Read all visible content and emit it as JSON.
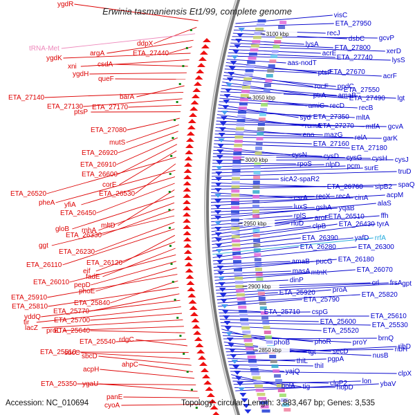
{
  "title": "Erwinia tasmaniensis Et1/99, complete genome",
  "accession": "Accession: NC_010694",
  "summary": "Topology: circular; Length: 3,883,467 bp; Genes: 3,535",
  "colors": {
    "left_labels": "#dd0000",
    "right_labels": "#0000cc",
    "trna_label": "#ee88bb",
    "rrna_label": "#22aadd",
    "backbone": "#777777",
    "tick_green": "#118811"
  },
  "scale_marks": [
    {
      "label": "3100 kbp"
    },
    {
      "label": "3050 kbp"
    },
    {
      "label": "3000 kbp"
    },
    {
      "label": "2950 kbp"
    },
    {
      "label": "2900 kbp"
    },
    {
      "label": "2850 kbp"
    }
  ],
  "left_labels": [
    {
      "text": "ygdR"
    },
    {
      "text": "ddpX"
    },
    {
      "text": "tRNA-Met",
      "kind": "trna"
    },
    {
      "text": "argA"
    },
    {
      "text": "ETA_27440"
    },
    {
      "text": "ygdK"
    },
    {
      "text": "xni"
    },
    {
      "text": "csdA"
    },
    {
      "text": "ygdH"
    },
    {
      "text": "queF"
    },
    {
      "text": "barA"
    },
    {
      "text": "ETA_27140"
    },
    {
      "text": "ETA_27130"
    },
    {
      "text": "ETA_27170"
    },
    {
      "text": "ptsP"
    },
    {
      "text": "ETA_27080"
    },
    {
      "text": "mutS"
    },
    {
      "text": "ETA_26920"
    },
    {
      "text": "ETA_26910"
    },
    {
      "text": "ETA_26600"
    },
    {
      "text": "corE"
    },
    {
      "text": "ETA_26520"
    },
    {
      "text": "ETA_26530"
    },
    {
      "text": "pheA"
    },
    {
      "text": "yfiA"
    },
    {
      "text": "ETA_26450"
    },
    {
      "text": "mltD"
    },
    {
      "text": "gloB"
    },
    {
      "text": "rnhA"
    },
    {
      "text": "ETA_26330"
    },
    {
      "text": "ggt"
    },
    {
      "text": "ETA_26230"
    },
    {
      "text": "ETA_26110"
    },
    {
      "text": "ETA_26120"
    },
    {
      "text": "eif"
    },
    {
      "text": "fadE"
    },
    {
      "text": "ETA_26010"
    },
    {
      "text": "pepD"
    },
    {
      "text": "phoE"
    },
    {
      "text": "ETA_25910"
    },
    {
      "text": "ETA_25840"
    },
    {
      "text": "ETA_25810"
    },
    {
      "text": "ETA_25770"
    },
    {
      "text": "yddQ"
    },
    {
      "text": "tir"
    },
    {
      "text": "ETA_25700"
    },
    {
      "text": "lacZ"
    },
    {
      "text": "proC"
    },
    {
      "text": "ETA_25640"
    },
    {
      "text": "ETA_25540"
    },
    {
      "text": "rdgC"
    },
    {
      "text": "ETA_25510"
    },
    {
      "text": "sbcC"
    },
    {
      "text": "sbcD"
    },
    {
      "text": "ahpC"
    },
    {
      "text": "acpH"
    },
    {
      "text": "ETA_25350"
    },
    {
      "text": "ygaU"
    },
    {
      "text": "panE"
    },
    {
      "text": "cyoA"
    }
  ],
  "right_labels": [
    {
      "text": "visC"
    },
    {
      "text": "ETA_27950"
    },
    {
      "text": "recJ"
    },
    {
      "text": "dsbC"
    },
    {
      "text": "gcvP"
    },
    {
      "text": "lysA"
    },
    {
      "text": "ETA_27800"
    },
    {
      "text": "xerD"
    },
    {
      "text": "acrE"
    },
    {
      "text": "ETA_27740"
    },
    {
      "text": "lysS"
    },
    {
      "text": "aas-nodT"
    },
    {
      "text": "ptsP"
    },
    {
      "text": "ETA_27670"
    },
    {
      "text": "acrF"
    },
    {
      "text": "rocF"
    },
    {
      "text": "ppdC"
    },
    {
      "text": "ETA_27550"
    },
    {
      "text": "ptrA"
    },
    {
      "text": "amaB"
    },
    {
      "text": "ETA_27490"
    },
    {
      "text": "lgt"
    },
    {
      "text": "amiC"
    },
    {
      "text": "recD"
    },
    {
      "text": "recB"
    },
    {
      "text": "syd"
    },
    {
      "text": "ETA_27350"
    },
    {
      "text": "mltA"
    },
    {
      "text": "rumA"
    },
    {
      "text": "ETA_27270"
    },
    {
      "text": "mtfA"
    },
    {
      "text": "gcvA"
    },
    {
      "text": "eno"
    },
    {
      "text": "mazG"
    },
    {
      "text": "relA"
    },
    {
      "text": "garK"
    },
    {
      "text": "ETA_27160"
    },
    {
      "text": "ETA_27180"
    },
    {
      "text": "cysN"
    },
    {
      "text": "cysD"
    },
    {
      "text": "cysG"
    },
    {
      "text": "cysH"
    },
    {
      "text": "cysJ"
    },
    {
      "text": "rpoS"
    },
    {
      "text": "nlpD"
    },
    {
      "text": "pcm"
    },
    {
      "text": "surE"
    },
    {
      "text": "truD"
    },
    {
      "text": "sicA2-spaR2"
    },
    {
      "text": "ETA_26760"
    },
    {
      "text": "sipB2"
    },
    {
      "text": "spaQ"
    },
    {
      "text": "csrA"
    },
    {
      "text": "recX"
    },
    {
      "text": "recA"
    },
    {
      "text": "cinA"
    },
    {
      "text": "acpM"
    },
    {
      "text": "luxS"
    },
    {
      "text": "gshA"
    },
    {
      "text": "yqaB"
    },
    {
      "text": "alaS"
    },
    {
      "text": "rplS"
    },
    {
      "text": "ETA_26510"
    },
    {
      "text": "ffh"
    },
    {
      "text": "aroF"
    },
    {
      "text": "rluD"
    },
    {
      "text": "clpB"
    },
    {
      "text": "ETA_26430"
    },
    {
      "text": "tyrA"
    },
    {
      "text": "ETA_26390"
    },
    {
      "text": "yafD"
    },
    {
      "text": "rrfA",
      "kind": "rrna"
    },
    {
      "text": "ETA_26280"
    },
    {
      "text": "ETA_26300"
    },
    {
      "text": "amaB"
    },
    {
      "text": "pucG"
    },
    {
      "text": "ETA_26180"
    },
    {
      "text": "masA"
    },
    {
      "text": "mtnK"
    },
    {
      "text": "ETA_26070"
    },
    {
      "text": "dinP"
    },
    {
      "text": "crl"
    },
    {
      "text": "frsA"
    },
    {
      "text": "gpt"
    },
    {
      "text": "ETA_25920"
    },
    {
      "text": "proA"
    },
    {
      "text": "ETA_25820"
    },
    {
      "text": "ETA_25790"
    },
    {
      "text": "ETA_25710"
    },
    {
      "text": "cspG"
    },
    {
      "text": "ETA_25610"
    },
    {
      "text": "ETA_25600"
    },
    {
      "text": "ETA_25530"
    },
    {
      "text": "ETA_25520"
    },
    {
      "text": "phoB"
    },
    {
      "text": "phoR"
    },
    {
      "text": "proY"
    },
    {
      "text": "brnQ"
    },
    {
      "text": "tgt"
    },
    {
      "text": "secD"
    },
    {
      "text": "nusB"
    },
    {
      "text": "ribH"
    },
    {
      "text": "ribD"
    },
    {
      "text": "thiL"
    },
    {
      "text": "pgpA"
    },
    {
      "text": "thiI"
    },
    {
      "text": "yajQ"
    },
    {
      "text": "clpX"
    },
    {
      "text": "bolA"
    },
    {
      "text": "tig"
    },
    {
      "text": "clpP2"
    },
    {
      "text": "lon"
    },
    {
      "text": "hopD"
    },
    {
      "text": "ybaV"
    }
  ]
}
